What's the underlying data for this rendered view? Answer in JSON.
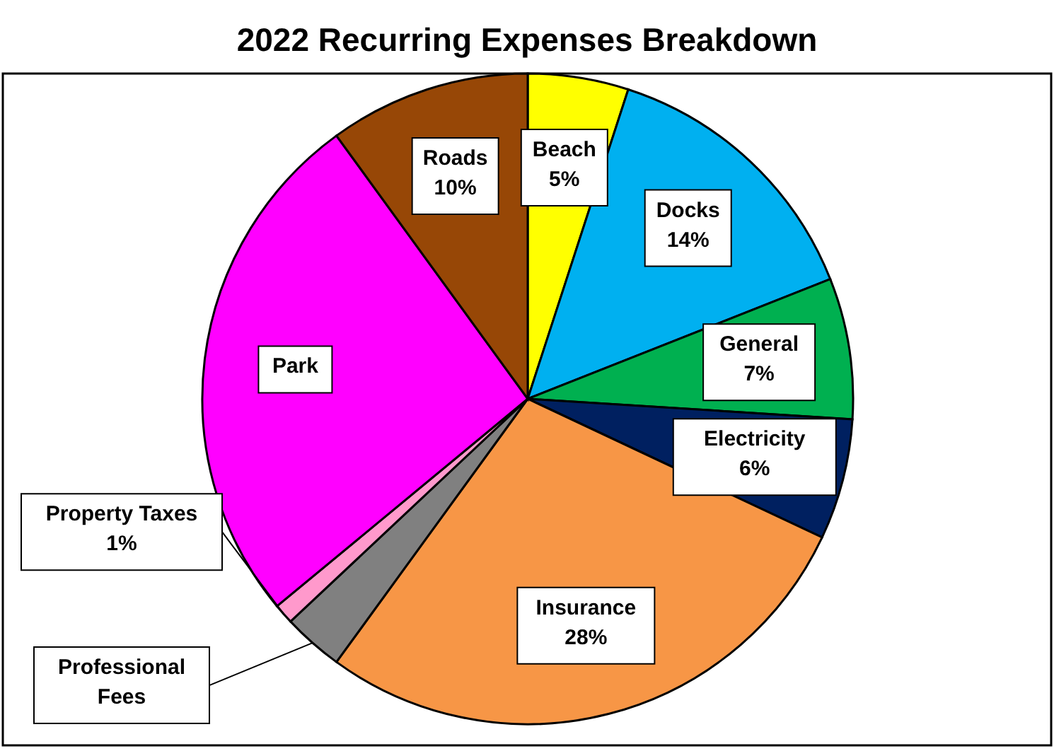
{
  "chart_data": {
    "type": "pie",
    "title": "2022 Recurring Expenses Breakdown",
    "categories": [
      "Beach",
      "Docks",
      "General",
      "Electricity",
      "Insurance",
      "Professional Fees",
      "Property Taxes",
      "Park",
      "Roads"
    ],
    "values": [
      5,
      14,
      7,
      6,
      28,
      3,
      1,
      26,
      10
    ],
    "value_labels": [
      "5%",
      "14%",
      "7%",
      "6%",
      "28%",
      null,
      "1%",
      null,
      "10%"
    ],
    "colors": [
      "#ffff00",
      "#00b0f0",
      "#00b050",
      "#002060",
      "#f79646",
      "#808080",
      "#ff99cc",
      "#ff00ff",
      "#974706"
    ]
  }
}
